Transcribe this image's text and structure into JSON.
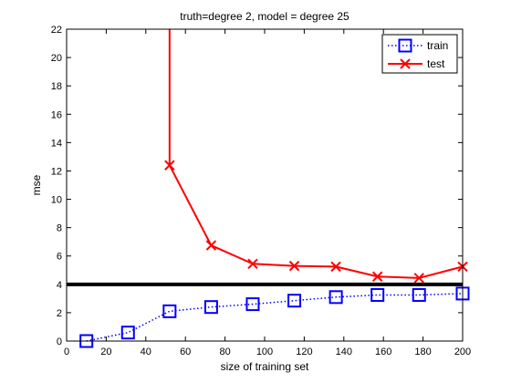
{
  "chart_data": {
    "type": "line",
    "title": "truth=degree 2, model = degree 25",
    "xlabel": "size of training set",
    "ylabel": "mse",
    "xlim": [
      0,
      200
    ],
    "ylim": [
      0,
      22
    ],
    "xticks": [
      0,
      20,
      40,
      60,
      80,
      100,
      120,
      140,
      160,
      180,
      200
    ],
    "yticks": [
      0,
      2,
      4,
      6,
      8,
      10,
      12,
      14,
      16,
      18,
      20,
      22
    ],
    "grid": false,
    "legend_position": "top-right",
    "reference_line": {
      "y": 4.0,
      "color": "#000000"
    },
    "series": [
      {
        "name": "train",
        "color": "#0000ff",
        "line_style": "dotted",
        "marker": "square",
        "x": [
          10,
          31,
          52,
          73,
          94,
          115,
          136,
          157,
          178,
          200
        ],
        "y": [
          0.0,
          0.6,
          2.1,
          2.4,
          2.6,
          2.85,
          3.1,
          3.25,
          3.25,
          3.35
        ]
      },
      {
        "name": "test",
        "color": "#ff0000",
        "line_style": "solid",
        "marker": "x",
        "x": [
          52,
          52,
          73,
          94,
          115,
          136,
          157,
          178,
          200
        ],
        "y": [
          22.0,
          12.4,
          6.75,
          5.45,
          5.3,
          5.25,
          4.55,
          4.45,
          5.25
        ]
      }
    ]
  }
}
